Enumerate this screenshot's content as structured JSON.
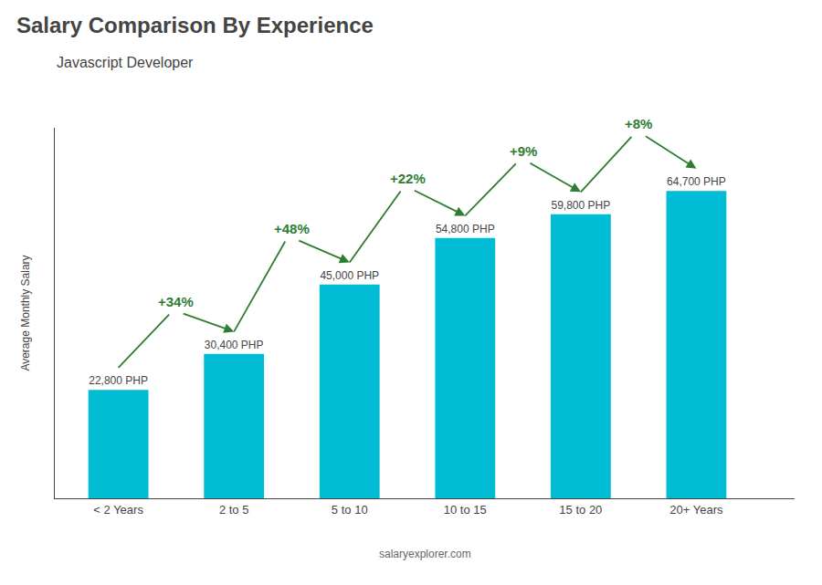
{
  "chart_data": {
    "type": "bar",
    "title": "Salary Comparison By Experience",
    "subtitle": "Javascript Developer",
    "categories": [
      "< 2 Years",
      "2 to 5",
      "5 to 10",
      "10 to 15",
      "15 to 20",
      "20+ Years"
    ],
    "values": [
      22800,
      30400,
      45000,
      54800,
      59800,
      64700
    ],
    "value_labels": [
      "22,800 PHP",
      "30,400 PHP",
      "45,000 PHP",
      "54,800 PHP",
      "59,800 PHP",
      "64,700 PHP"
    ],
    "data_labels": true,
    "color": "#00bcd4",
    "ylabel": "Average Monthly Salary",
    "ylim": [
      0,
      78000
    ],
    "yticks": [],
    "tick_labels": "x",
    "grid": false,
    "annotations": [
      "+34%",
      "+48%",
      "+22%",
      "+9%",
      "+8%"
    ],
    "footer": "salaryexplorer.com"
  }
}
